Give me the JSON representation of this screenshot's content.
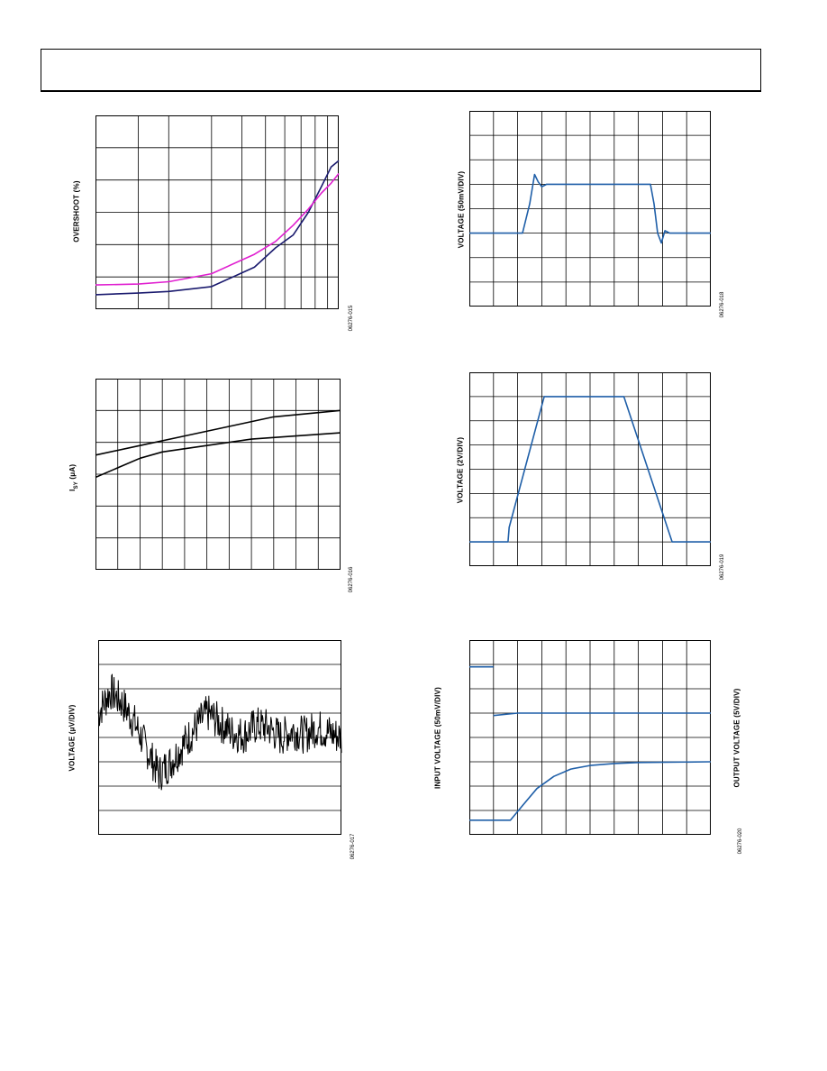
{
  "charts": [
    {
      "id": "overshoot",
      "ylabel": "OVERSHOOT (%)",
      "fig_code": "06276-015",
      "xscale": "log",
      "xlim": [
        1,
        10
      ],
      "ylim": [
        0,
        6
      ],
      "series": [
        {
          "color": "#1a1a6e",
          "x": [
            1,
            1.5,
            2,
            3,
            4.5,
            5.5,
            6.5,
            7.5,
            8.5,
            9.3,
            10
          ],
          "y": [
            0.45,
            0.5,
            0.55,
            0.7,
            1.3,
            1.9,
            2.3,
            3.0,
            3.8,
            4.4,
            4.6
          ]
        },
        {
          "color": "#e020d0",
          "x": [
            1,
            1.5,
            2,
            3,
            4.5,
            5.5,
            6.5,
            7.5,
            8.5,
            9.3,
            10
          ],
          "y": [
            0.75,
            0.78,
            0.85,
            1.1,
            1.7,
            2.1,
            2.6,
            3.1,
            3.6,
            3.9,
            4.2
          ]
        }
      ],
      "x_grid": [
        1.5,
        2,
        3,
        4,
        5,
        6,
        7,
        8,
        9
      ],
      "y_grid": [
        1,
        2,
        3,
        4,
        5
      ]
    },
    {
      "id": "supply-current",
      "ylabel_main": "I",
      "ylabel_sub": "SY",
      "ylabel_tail": " (μA)",
      "fig_code": "06276-016",
      "xscale": "linear",
      "xlim": [
        0,
        11
      ],
      "ylim": [
        0,
        6
      ],
      "series": [
        {
          "color": "#000000",
          "x": [
            0,
            2,
            4,
            6,
            8,
            11
          ],
          "y": [
            3.6,
            3.9,
            4.2,
            4.5,
            4.8,
            5.0
          ]
        },
        {
          "color": "#000000",
          "x": [
            0,
            1,
            2,
            3,
            5,
            7,
            9,
            11
          ],
          "y": [
            2.9,
            3.2,
            3.5,
            3.7,
            3.9,
            4.1,
            4.2,
            4.3
          ]
        }
      ],
      "x_grid": [
        1,
        2,
        3,
        4,
        5,
        6,
        7,
        8,
        9,
        10
      ],
      "y_grid": [
        1,
        2,
        3,
        4,
        5
      ]
    },
    {
      "id": "noise",
      "ylabel": "VOLTAGE (μV/DIV)",
      "fig_code": "06276-017",
      "xscale": "linear",
      "xlim": [
        0,
        10
      ],
      "ylim": [
        -4,
        4
      ],
      "noise_seed": 7,
      "series": [
        {
          "color": "#000000",
          "x": [
            0,
            0.5,
            1,
            1.5,
            2,
            2.5,
            3,
            3.5,
            4,
            4.5,
            5,
            5.5,
            6,
            6.5,
            7,
            7.5,
            8,
            8.5,
            9,
            9.5,
            10
          ],
          "y": [
            1.0,
            1.9,
            1.4,
            0.6,
            -0.5,
            -1.5,
            -1.0,
            -0.3,
            0.4,
            1.0,
            0.6,
            0.2,
            0.1,
            0.5,
            0.4,
            0.0,
            0.3,
            0.1,
            0.4,
            0.2,
            0.0
          ]
        }
      ],
      "x_grid": [],
      "y_grid": [
        -3,
        -2,
        -1,
        0,
        1,
        2,
        3
      ]
    },
    {
      "id": "small-signal",
      "ylabel": "VOLTAGE (50mV/DIV)",
      "fig_code": "06276-018",
      "xscale": "linear",
      "xlim": [
        0,
        10
      ],
      "ylim": [
        0,
        8
      ],
      "series": [
        {
          "color": "#1f5fa8",
          "x": [
            0,
            2.2,
            2.5,
            2.7,
            2.85,
            3.0,
            3.2,
            3.4,
            5,
            7,
            7.5,
            7.65,
            7.8,
            7.95,
            8.1,
            8.3,
            8.5,
            10
          ],
          "y": [
            3.0,
            3.0,
            4.2,
            5.4,
            5.1,
            4.9,
            5.0,
            5.0,
            5.0,
            5.0,
            5.0,
            4.2,
            3.0,
            2.6,
            3.1,
            3.0,
            3.0,
            3.0
          ]
        }
      ],
      "x_grid": [
        1,
        2,
        3,
        4,
        5,
        6,
        7,
        8,
        9
      ],
      "y_grid": [
        1,
        2,
        3,
        4,
        5,
        6,
        7
      ]
    },
    {
      "id": "large-signal",
      "ylabel": "VOLTAGE (2V/DIV)",
      "fig_code": "06276-019",
      "xscale": "linear",
      "xlim": [
        0,
        10
      ],
      "ylim": [
        0,
        8
      ],
      "series": [
        {
          "color": "#1f5fa8",
          "x": [
            0,
            1.6,
            1.65,
            3.1,
            6.4,
            8.4,
            10
          ],
          "y": [
            1.0,
            1.0,
            1.6,
            7.0,
            7.0,
            1.0,
            1.0
          ]
        }
      ],
      "x_grid": [
        1,
        2,
        3,
        4,
        5,
        6,
        7,
        8,
        9
      ],
      "y_grid": [
        1,
        2,
        3,
        4,
        5,
        6,
        7
      ]
    },
    {
      "id": "step-response",
      "ylabel": "INPUT VOLTAGE (50mV/DIV)",
      "ylabel_right": "OUTPUT VOLTAGE (5V/DIV)",
      "fig_code": "06276-020",
      "xscale": "linear",
      "xlim": [
        0,
        10
      ],
      "ylim": [
        0,
        8
      ],
      "series": [
        {
          "color": "#1f5fa8",
          "x": [
            0,
            1.0
          ],
          "y": [
            6.9,
            6.9
          ]
        },
        {
          "color": "#1f5fa8",
          "x": [
            1.0,
            2.0,
            10
          ],
          "y": [
            4.9,
            5.0,
            5.0
          ]
        },
        {
          "color": "#1f5fa8",
          "x": [
            0,
            1.7,
            2.2,
            2.8,
            3.5,
            4.2,
            5.0,
            6.0,
            7.0,
            10
          ],
          "y": [
            0.6,
            0.6,
            1.2,
            1.9,
            2.4,
            2.7,
            2.85,
            2.93,
            2.97,
            3.0
          ]
        }
      ],
      "x_grid": [
        1,
        2,
        3,
        4,
        5,
        6,
        7,
        8,
        9
      ],
      "y_grid": [
        1,
        2,
        3,
        4,
        5,
        6,
        7
      ]
    }
  ]
}
